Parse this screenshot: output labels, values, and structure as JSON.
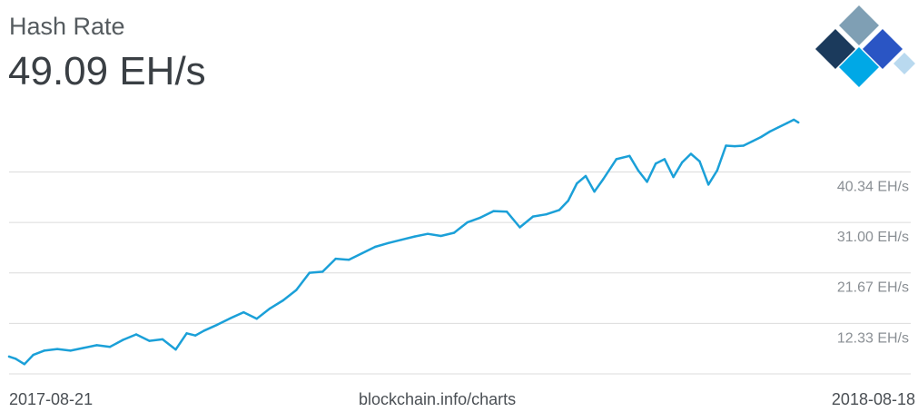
{
  "header": {
    "title": "Hash Rate",
    "current_value": "49.09 EH/s"
  },
  "footer": {
    "start_date": "2017-08-21",
    "source": "blockchain.info/charts",
    "end_date": "2018-08-18"
  },
  "colors": {
    "line": "#1ba0d8",
    "grid": "#dcdcdc",
    "logo_dark": "#1b3a5c",
    "logo_blue": "#2a55c4",
    "logo_gray": "#7f9fb4",
    "logo_light": "#00a8e6",
    "logo_pale": "#b9d9ef"
  },
  "icons": {
    "logo": "blockchain-logo-icon"
  },
  "chart_data": {
    "type": "line",
    "title": "Hash Rate",
    "xlabel": "",
    "ylabel": "",
    "y_unit": "EH/s",
    "xlim": [
      "2017-08-21",
      "2018-08-18"
    ],
    "ylim": [
      3,
      52
    ],
    "y_ticks": [
      {
        "value": 12.33,
        "label": "12.33 EH/s"
      },
      {
        "value": 21.67,
        "label": "21.67 EH/s"
      },
      {
        "value": 31.0,
        "label": "31.00 EH/s"
      },
      {
        "value": 40.34,
        "label": "40.34 EH/s"
      }
    ],
    "grid": true,
    "series": [
      {
        "x": [
          "2017-08-21",
          "2017-08-24",
          "2017-08-28",
          "2017-09-01",
          "2017-09-06",
          "2017-09-12",
          "2017-09-18",
          "2017-09-24",
          "2017-09-30",
          "2017-10-06",
          "2017-10-12",
          "2017-10-18",
          "2017-10-24",
          "2017-10-30",
          "2017-11-05",
          "2017-11-10",
          "2017-11-14",
          "2017-11-18",
          "2017-11-24",
          "2017-11-30",
          "2017-12-06",
          "2017-12-12",
          "2017-12-18",
          "2017-12-24",
          "2017-12-30",
          "2018-01-05",
          "2018-01-11",
          "2018-01-17",
          "2018-01-23",
          "2018-01-29",
          "2018-02-04",
          "2018-02-10",
          "2018-02-16",
          "2018-02-22",
          "2018-02-28",
          "2018-03-06",
          "2018-03-12",
          "2018-03-18",
          "2018-03-24",
          "2018-03-30",
          "2018-04-05",
          "2018-04-11",
          "2018-04-17",
          "2018-04-23",
          "2018-04-29",
          "2018-05-03",
          "2018-05-07",
          "2018-05-11",
          "2018-05-15",
          "2018-05-19",
          "2018-05-25",
          "2018-05-31",
          "2018-06-04",
          "2018-06-08",
          "2018-06-12",
          "2018-06-16",
          "2018-06-20",
          "2018-06-24",
          "2018-06-28",
          "2018-07-02",
          "2018-07-06",
          "2018-07-10",
          "2018-07-14",
          "2018-07-18",
          "2018-07-22",
          "2018-07-26",
          "2018-07-30",
          "2018-08-03",
          "2018-08-07",
          "2018-08-11",
          "2018-08-14",
          "2018-08-16"
        ],
        "values": [
          6.2,
          5.8,
          4.8,
          6.5,
          7.3,
          7.6,
          7.3,
          7.8,
          8.3,
          8.0,
          9.3,
          10.3,
          9.1,
          9.4,
          7.5,
          10.5,
          10.1,
          11.0,
          12.1,
          13.3,
          14.4,
          13.2,
          15.1,
          16.6,
          18.5,
          21.7,
          21.9,
          24.3,
          24.1,
          25.3,
          26.5,
          27.2,
          27.8,
          28.4,
          28.9,
          28.5,
          29.1,
          31.0,
          31.9,
          33.1,
          33.0,
          30.1,
          32.1,
          32.5,
          33.3,
          35.0,
          38.2,
          39.6,
          36.7,
          39.0,
          42.7,
          43.3,
          40.6,
          38.5,
          41.9,
          42.7,
          39.4,
          42.1,
          43.7,
          42.3,
          38.0,
          40.6,
          45.2,
          45.1,
          45.2,
          46.0,
          46.8,
          47.8,
          48.6,
          49.4,
          50.0,
          49.5
        ]
      }
    ]
  }
}
